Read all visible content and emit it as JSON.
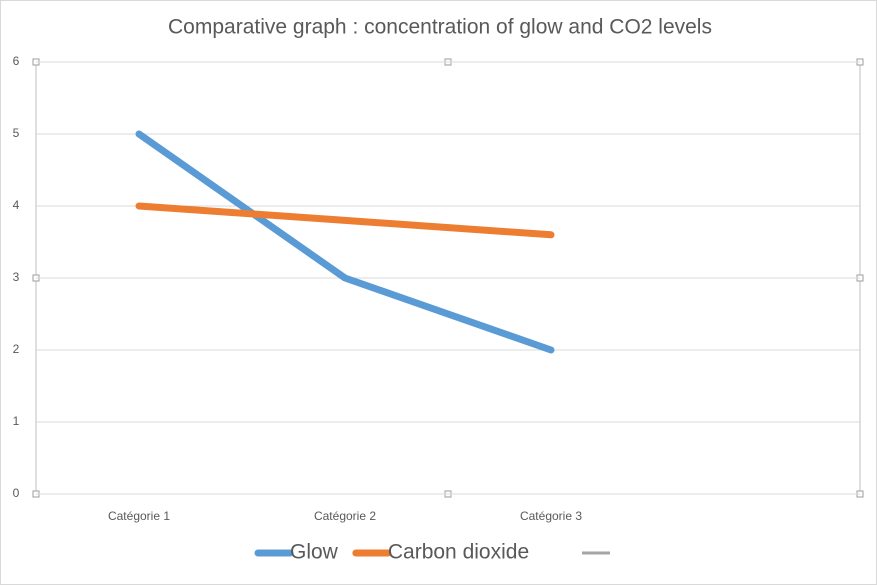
{
  "chart_data": {
    "type": "line",
    "title": "Comparative graph : concentration of glow and CO2 levels",
    "categories": [
      "Catégorie 1",
      "Catégorie 2",
      "Catégorie 3",
      null
    ],
    "series": [
      {
        "name": "Glow",
        "color": "#5b9bd5",
        "values": [
          5,
          3,
          2,
          null
        ]
      },
      {
        "name": "Carbon dioxide",
        "color": "#ed7d31",
        "values": [
          4,
          3.8,
          3.6,
          null
        ]
      }
    ],
    "ylim": [
      0,
      6
    ],
    "yticks": [
      0,
      1,
      2,
      3,
      4,
      5,
      6
    ],
    "grid": true,
    "legend": "bottom"
  }
}
